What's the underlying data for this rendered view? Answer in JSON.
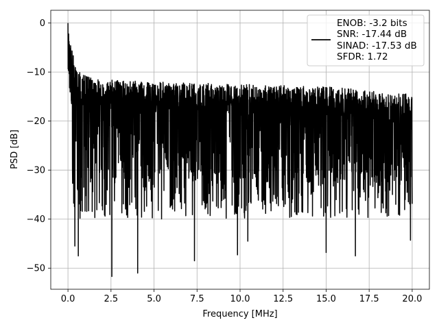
{
  "chart_data": {
    "type": "line",
    "title": "",
    "xlabel": "Frequency [MHz]",
    "ylabel": "PSD [dB]",
    "xlim": [
      -1.0,
      21.0
    ],
    "ylim": [
      -54.3,
      2.6
    ],
    "xticks": [
      0.0,
      2.5,
      5.0,
      7.5,
      10.0,
      12.5,
      15.0,
      17.5,
      20.0
    ],
    "xtick_labels": [
      "0.0",
      "2.5",
      "5.0",
      "7.5",
      "10.0",
      "12.5",
      "15.0",
      "17.5",
      "20.0"
    ],
    "yticks": [
      0,
      -10,
      -20,
      -30,
      -40,
      -50
    ],
    "ytick_labels": [
      "0",
      "−10",
      "−20",
      "−30",
      "−40",
      "−50"
    ],
    "grid": true,
    "legend_position": "top-right",
    "line_color": "#000000",
    "legend_entries": [
      "ENOB: -3.2 bits",
      "SNR: -17.44 dB",
      "SINAD: -17.53 dB",
      "SFDR: 1.72"
    ],
    "series": [
      {
        "values_description_free": true,
        "x_start": 0.0,
        "x_end": 20.0,
        "peak": {
          "x": 0.0,
          "y": 0.0
        },
        "notable_minima": [
          {
            "x": 0.4,
            "y": -45.5
          },
          {
            "x": 0.6,
            "y": -47.5
          },
          {
            "x": 2.55,
            "y": -51.7
          },
          {
            "x": 4.05,
            "y": -51.0
          },
          {
            "x": 7.35,
            "y": -48.5
          },
          {
            "x": 9.85,
            "y": -47.3
          },
          {
            "x": 10.45,
            "y": -44.5
          },
          {
            "x": 15.0,
            "y": -46.8
          },
          {
            "x": 16.7,
            "y": -47.5
          },
          {
            "x": 19.9,
            "y": -44.3
          }
        ],
        "envelope_top": [
          {
            "x": 0.0,
            "y": 0.0
          },
          {
            "x": 0.2,
            "y": -5.0
          },
          {
            "x": 0.5,
            "y": -9.5
          },
          {
            "x": 1.5,
            "y": -11.5
          },
          {
            "x": 5.0,
            "y": -12.0
          },
          {
            "x": 10.0,
            "y": -12.5
          },
          {
            "x": 15.0,
            "y": -13.0
          },
          {
            "x": 20.0,
            "y": -14.5
          }
        ],
        "typical_band": [
          -32,
          -14
        ]
      }
    ]
  }
}
